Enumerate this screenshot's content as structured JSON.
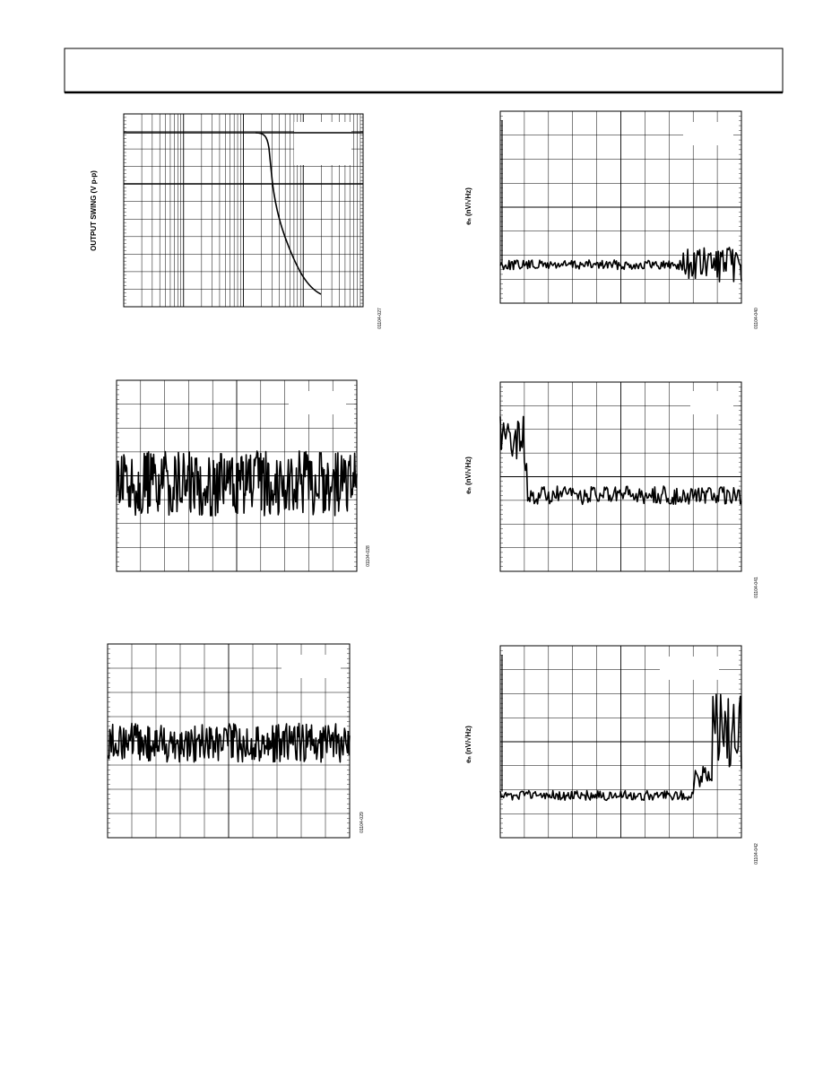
{
  "figures": [
    {
      "y_label": "OUTPUT SWING (V p-p)",
      "figure_id": "01104-027"
    },
    {
      "y_label": "eₙ (nV/√Hz)",
      "figure_id": "01104-040"
    },
    {
      "figure_id": "01104-028"
    },
    {
      "y_label": "eₙ (nV/√Hz)",
      "figure_id": "01104-041"
    },
    {
      "figure_id": "01104-029"
    },
    {
      "y_label": "eₙ (nV/√Hz)",
      "figure_id": "01104-042"
    }
  ]
}
